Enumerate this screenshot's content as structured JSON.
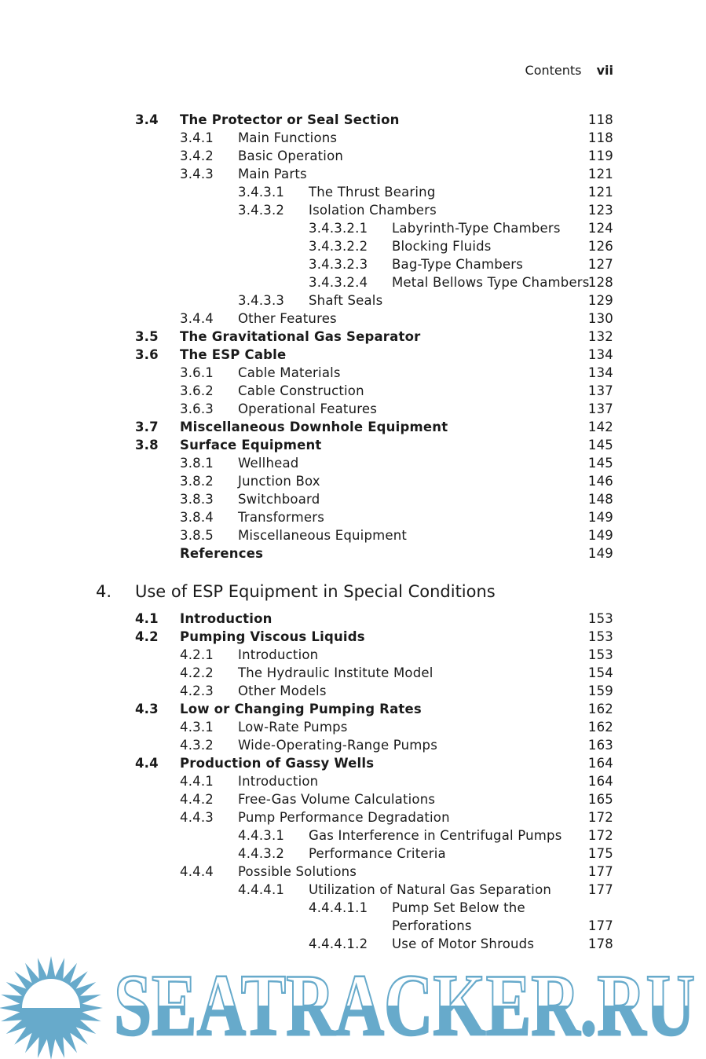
{
  "header": {
    "running_title": "Contents",
    "page_number": "vii"
  },
  "sections": [
    {
      "type": "entries",
      "entries": [
        {
          "level": 1,
          "num": "3.4",
          "title": "The Protector or Seal Section",
          "page": "118"
        },
        {
          "level": 2,
          "num": "3.4.1",
          "title": "Main Functions",
          "page": "118"
        },
        {
          "level": 2,
          "num": "3.4.2",
          "title": "Basic Operation",
          "page": "119"
        },
        {
          "level": 2,
          "num": "3.4.3",
          "title": "Main Parts",
          "page": "121"
        },
        {
          "level": 3,
          "num": "3.4.3.1",
          "title": "The Thrust Bearing",
          "page": "121"
        },
        {
          "level": 3,
          "num": "3.4.3.2",
          "title": "Isolation Chambers",
          "page": "123"
        },
        {
          "level": 4,
          "num": "3.4.3.2.1",
          "title": "Labyrinth-Type Chambers",
          "page": "124"
        },
        {
          "level": 4,
          "num": "3.4.3.2.2",
          "title": "Blocking Fluids",
          "page": "126"
        },
        {
          "level": 4,
          "num": "3.4.3.2.3",
          "title": "Bag-Type Chambers",
          "page": "127"
        },
        {
          "level": 4,
          "num": "3.4.3.2.4",
          "title": "Metal Bellows Type Chambers",
          "page": "128"
        },
        {
          "level": 3,
          "num": "3.4.3.3",
          "title": "Shaft Seals",
          "page": "129"
        },
        {
          "level": 2,
          "num": "3.4.4",
          "title": "Other Features",
          "page": "130"
        },
        {
          "level": 1,
          "num": "3.5",
          "title": "The Gravitational Gas Separator",
          "page": "132"
        },
        {
          "level": 1,
          "num": "3.6",
          "title": "The ESP Cable",
          "page": "134"
        },
        {
          "level": 2,
          "num": "3.6.1",
          "title": "Cable Materials",
          "page": "134"
        },
        {
          "level": 2,
          "num": "3.6.2",
          "title": "Cable Construction",
          "page": "137"
        },
        {
          "level": 2,
          "num": "3.6.3",
          "title": "Operational Features",
          "page": "137"
        },
        {
          "level": 1,
          "num": "3.7",
          "title": "Miscellaneous Downhole Equipment",
          "page": "142"
        },
        {
          "level": 1,
          "num": "3.8",
          "title": "Surface Equipment",
          "page": "145"
        },
        {
          "level": 2,
          "num": "3.8.1",
          "title": "Wellhead",
          "page": "145"
        },
        {
          "level": 2,
          "num": "3.8.2",
          "title": "Junction Box",
          "page": "146"
        },
        {
          "level": 2,
          "num": "3.8.3",
          "title": "Switchboard",
          "page": "148"
        },
        {
          "level": 2,
          "num": "3.8.4",
          "title": "Transformers",
          "page": "149"
        },
        {
          "level": 2,
          "num": "3.8.5",
          "title": "Miscellaneous Equipment",
          "page": "149"
        },
        {
          "level": "ref",
          "num": "",
          "title": "References",
          "page": "149"
        }
      ]
    },
    {
      "type": "chapter",
      "num": "4.",
      "title": "Use of ESP Equipment in Special Conditions"
    },
    {
      "type": "entries",
      "entries": [
        {
          "level": 1,
          "num": "4.1",
          "title": "Introduction",
          "page": "153"
        },
        {
          "level": 1,
          "num": "4.2",
          "title": "Pumping Viscous Liquids",
          "page": "153"
        },
        {
          "level": 2,
          "num": "4.2.1",
          "title": "Introduction",
          "page": "153"
        },
        {
          "level": 2,
          "num": "4.2.2",
          "title": "The Hydraulic Institute Model",
          "page": "154"
        },
        {
          "level": 2,
          "num": "4.2.3",
          "title": "Other Models",
          "page": "159"
        },
        {
          "level": 1,
          "num": "4.3",
          "title": "Low or Changing Pumping Rates",
          "page": "162"
        },
        {
          "level": 2,
          "num": "4.3.1",
          "title": "Low-Rate Pumps",
          "page": "162"
        },
        {
          "level": 2,
          "num": "4.3.2",
          "title": "Wide-Operating-Range Pumps",
          "page": "163"
        },
        {
          "level": 1,
          "num": "4.4",
          "title": "Production of Gassy Wells",
          "page": "164"
        },
        {
          "level": 2,
          "num": "4.4.1",
          "title": "Introduction",
          "page": "164"
        },
        {
          "level": 2,
          "num": "4.4.2",
          "title": "Free-Gas Volume Calculations",
          "page": "165"
        },
        {
          "level": 2,
          "num": "4.4.3",
          "title": "Pump Performance Degradation",
          "page": "172"
        },
        {
          "level": 3,
          "num": "4.4.3.1",
          "title": "Gas Interference in Centrifugal Pumps",
          "page": "172"
        },
        {
          "level": 3,
          "num": "4.4.3.2",
          "title": "Performance Criteria",
          "page": "175"
        },
        {
          "level": 2,
          "num": "4.4.4",
          "title": "Possible Solutions",
          "page": "177"
        },
        {
          "level": 3,
          "num": "4.4.4.1",
          "title": "Utilization of Natural Gas Separation",
          "page": "177"
        },
        {
          "level": 4,
          "num": "4.4.4.1.1",
          "title": "Pump Set Below the",
          "page": ""
        },
        {
          "level": 4,
          "num": "",
          "title": "Perforations",
          "page": "177"
        },
        {
          "level": 4,
          "num": "4.4.4.1.2",
          "title": "Use of Motor Shrouds",
          "page": "178"
        }
      ]
    }
  ],
  "watermark": {
    "text": "SEATRACKER.RU",
    "color": "#67aacb"
  }
}
